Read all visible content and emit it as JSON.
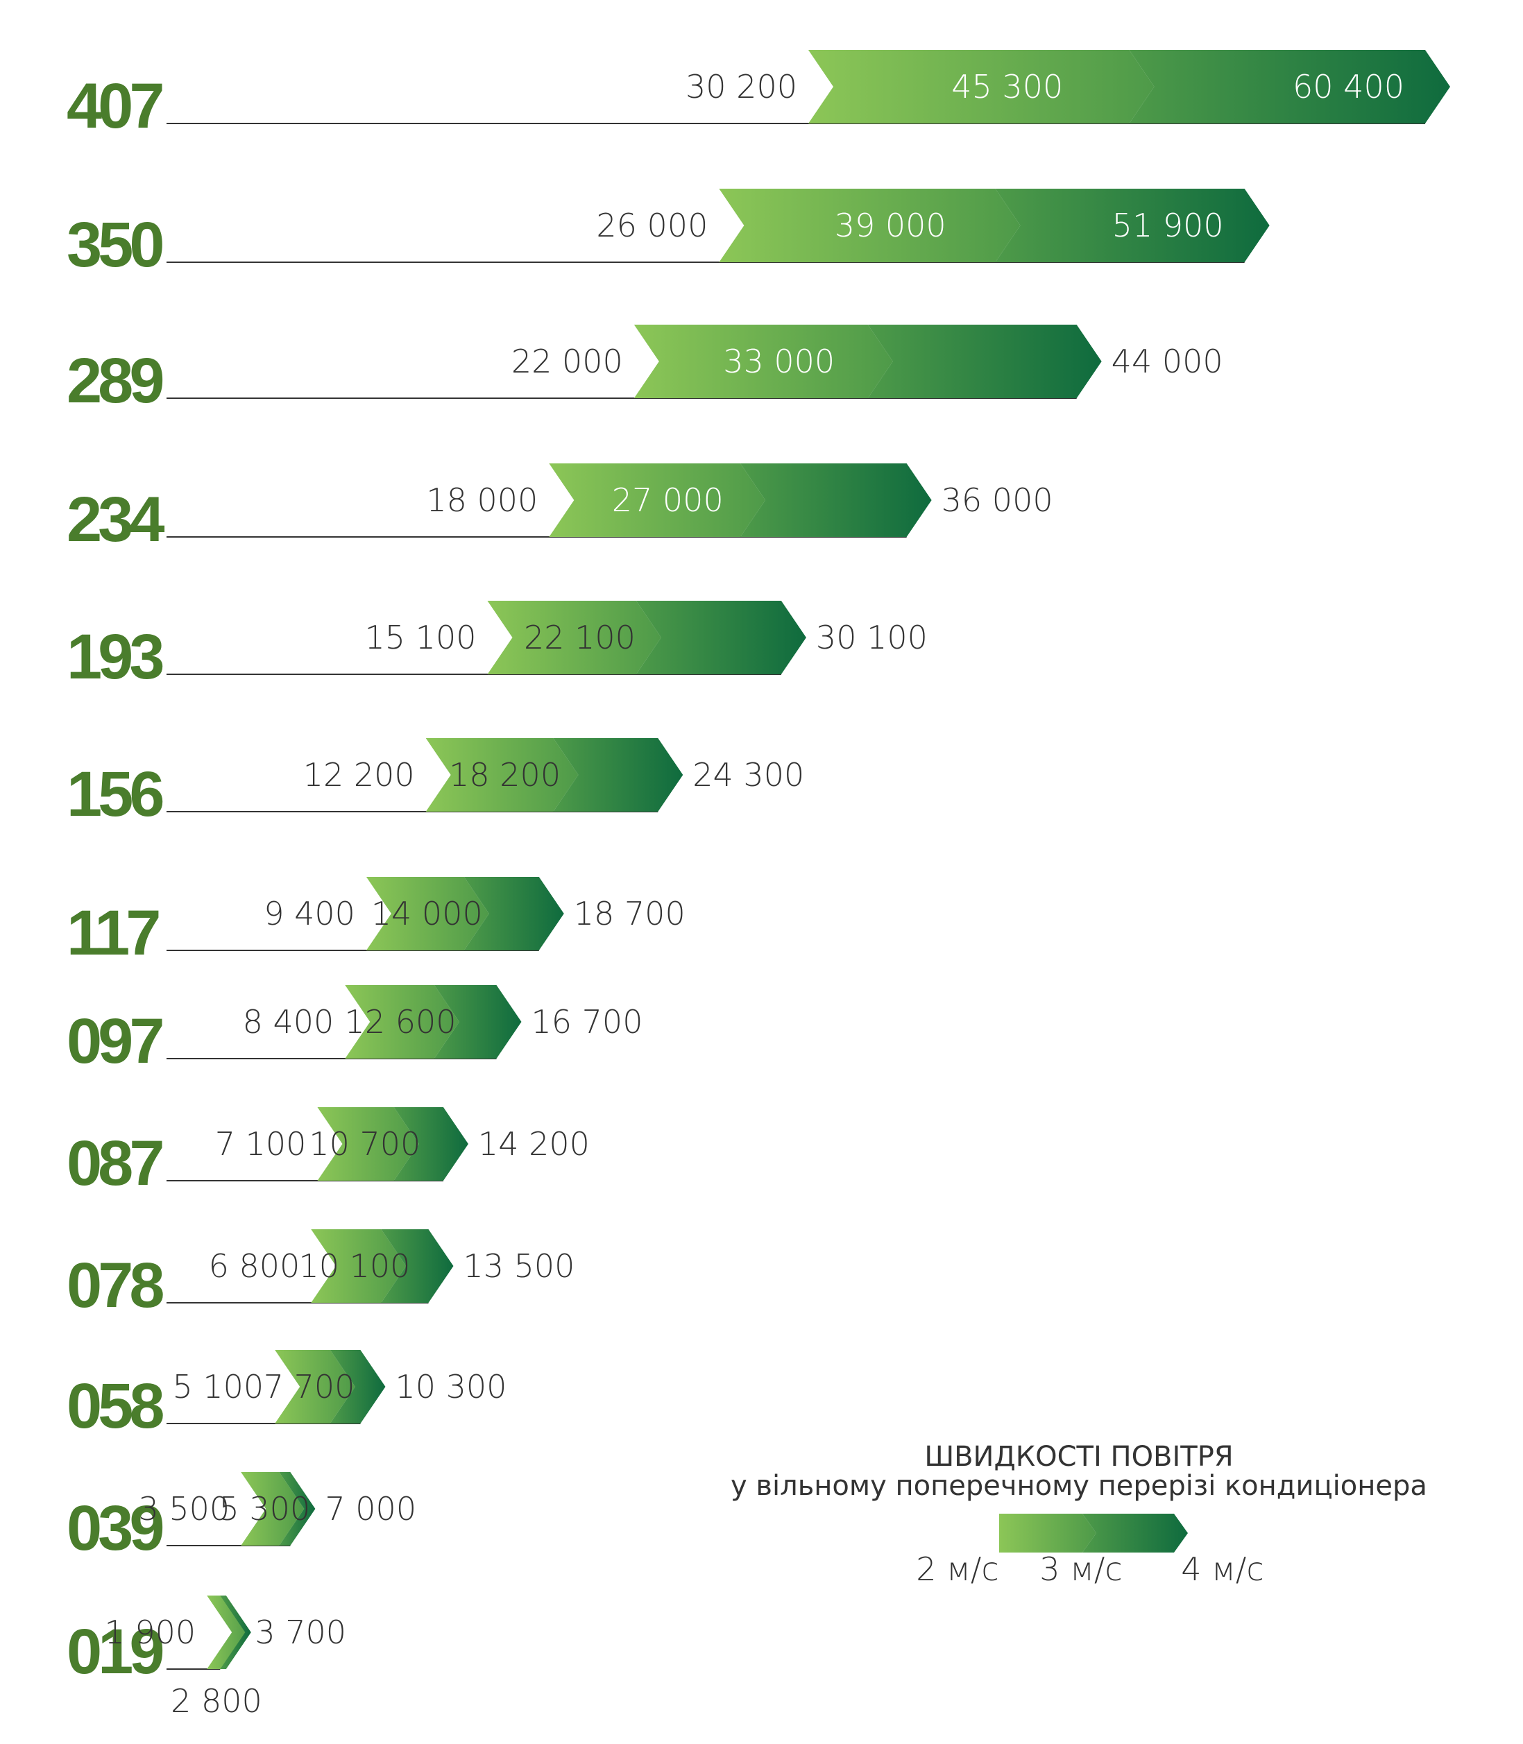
{
  "chart_data": {
    "type": "bar",
    "title": "",
    "xlabel": "",
    "ylabel": "",
    "categories": [
      "407",
      "350",
      "289",
      "234",
      "193",
      "156",
      "117",
      "097",
      "087",
      "078",
      "058",
      "039",
      "019"
    ],
    "series": [
      {
        "name": "2 м/с",
        "values": [
          30200,
          26000,
          22000,
          18000,
          15100,
          12200,
          9400,
          8400,
          7100,
          6800,
          5100,
          3500,
          1900
        ]
      },
      {
        "name": "3 м/с",
        "values": [
          45300,
          39000,
          33000,
          27000,
          22100,
          18200,
          14000,
          12600,
          10700,
          10100,
          7700,
          5300,
          2800
        ]
      },
      {
        "name": "4 м/с",
        "values": [
          60400,
          51900,
          44000,
          36000,
          30100,
          24300,
          18700,
          16700,
          14200,
          13500,
          10300,
          7000,
          3700
        ]
      }
    ],
    "value_labels": [
      [
        "30 200",
        "45 300",
        "60 400"
      ],
      [
        "26 000",
        "39 000",
        "51 900"
      ],
      [
        "22 000",
        "33 000",
        "44 000"
      ],
      [
        "18 000",
        "27 000",
        "36 000"
      ],
      [
        "15 100",
        "22 100",
        "30 100"
      ],
      [
        "12 200",
        "18 200",
        "24 300"
      ],
      [
        "9 400",
        "14 000",
        "18 700"
      ],
      [
        "8 400",
        "12 600",
        "16 700"
      ],
      [
        "7 100",
        "10 700",
        "14 200"
      ],
      [
        "6 800",
        "10 100",
        "13 500"
      ],
      [
        "5 100",
        "7 700",
        "10 300"
      ],
      [
        "3 500",
        "5 300",
        "7 000"
      ],
      [
        "1 900",
        "2 800",
        "3 700"
      ]
    ],
    "orientation": "horizontal",
    "grid": false,
    "legend": {
      "title": "ШВИДКОСТІ ПОВІТРЯ",
      "subtitle": "у вільному поперечному перерізі кондиціонера",
      "labels": [
        "2 м/с",
        "3 м/с",
        "4 м/с"
      ],
      "position": "bottom-right"
    }
  },
  "colors": {
    "label": "#4a7d2c",
    "gradient_start": "#8cc657",
    "gradient_mid": "#4e9a49",
    "gradient_end": "#0f6b3e",
    "axis_line": "#333333"
  }
}
